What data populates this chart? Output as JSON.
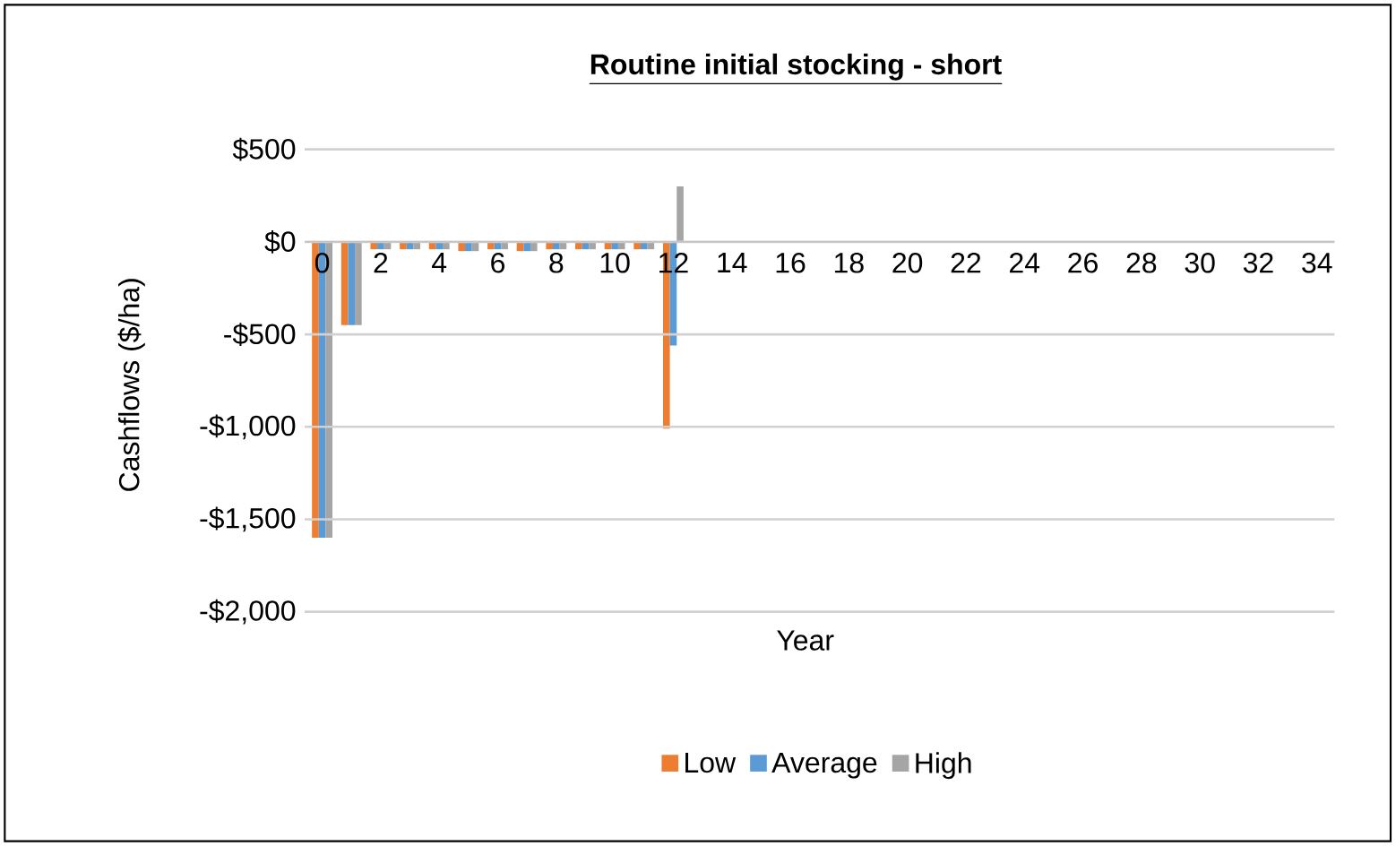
{
  "chart_data": {
    "type": "bar",
    "title": "Routine initial stocking - short",
    "xlabel": "Year",
    "ylabel": "Cashflows ($/ha)",
    "categories": [
      "0",
      null,
      "2",
      null,
      "4",
      null,
      "6",
      null,
      "8",
      null,
      "10",
      null,
      "12",
      null,
      "14",
      null,
      "16",
      null,
      "18",
      null,
      "20",
      null,
      "22",
      null,
      "24",
      null,
      "26",
      null,
      "28",
      null,
      "30",
      null,
      "32",
      null,
      "34"
    ],
    "series": [
      {
        "name": "Low",
        "color": "#ed7d31",
        "values": [
          -1600,
          -450,
          -40,
          -40,
          -40,
          -50,
          -40,
          -50,
          -40,
          -40,
          -40,
          -40,
          -1010,
          0,
          0,
          0,
          0,
          0,
          0,
          0,
          0,
          0,
          0,
          0,
          0,
          0,
          0,
          0,
          0,
          0,
          0,
          0,
          0,
          0,
          0
        ]
      },
      {
        "name": "Average",
        "color": "#5b9bd5",
        "values": [
          -1600,
          -450,
          -40,
          -40,
          -40,
          -50,
          -40,
          -50,
          -40,
          -40,
          -40,
          -40,
          -560,
          0,
          0,
          0,
          0,
          0,
          0,
          0,
          0,
          0,
          0,
          0,
          0,
          0,
          0,
          0,
          0,
          0,
          0,
          0,
          0,
          0,
          0
        ]
      },
      {
        "name": "High",
        "color": "#a5a5a5",
        "values": [
          -1600,
          -450,
          -40,
          -40,
          -40,
          -50,
          -40,
          -50,
          -40,
          -40,
          -40,
          -40,
          300,
          0,
          0,
          0,
          0,
          0,
          0,
          0,
          0,
          0,
          0,
          0,
          0,
          0,
          0,
          0,
          0,
          0,
          0,
          0,
          0,
          0,
          0
        ]
      }
    ],
    "ylim": [
      -2000,
      500
    ],
    "yticks": [
      {
        "value": -2000,
        "label": "-$2,000"
      },
      {
        "value": -1500,
        "label": "-$1,500"
      },
      {
        "value": -1000,
        "label": "-$1,000"
      },
      {
        "value": -500,
        "label": "-$500"
      },
      {
        "value": 0,
        "label": "$0"
      },
      {
        "value": 500,
        "label": "$500"
      }
    ],
    "grid": "y",
    "legend": "bottom"
  }
}
